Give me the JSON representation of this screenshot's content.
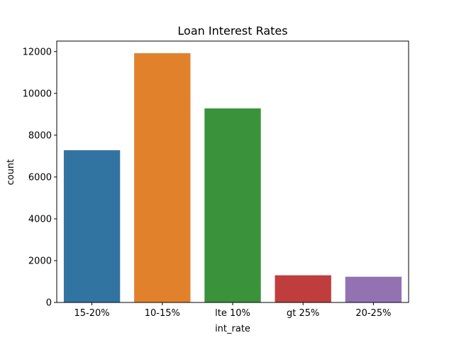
{
  "chart_data": {
    "type": "bar",
    "title": "Loan Interest Rates",
    "xlabel": "int_rate",
    "ylabel": "count",
    "categories": [
      "15-20%",
      "10-15%",
      "lte 10%",
      "gt 25%",
      "20-25%"
    ],
    "values": [
      7280,
      11920,
      9280,
      1300,
      1230
    ],
    "colors": [
      "#3274a1",
      "#e1812c",
      "#3a923a",
      "#c03d3e",
      "#9372b2"
    ],
    "ylim": [
      0,
      12500
    ],
    "yticks": [
      0,
      2000,
      4000,
      6000,
      8000,
      10000,
      12000
    ],
    "grid": false,
    "legend": "none"
  }
}
